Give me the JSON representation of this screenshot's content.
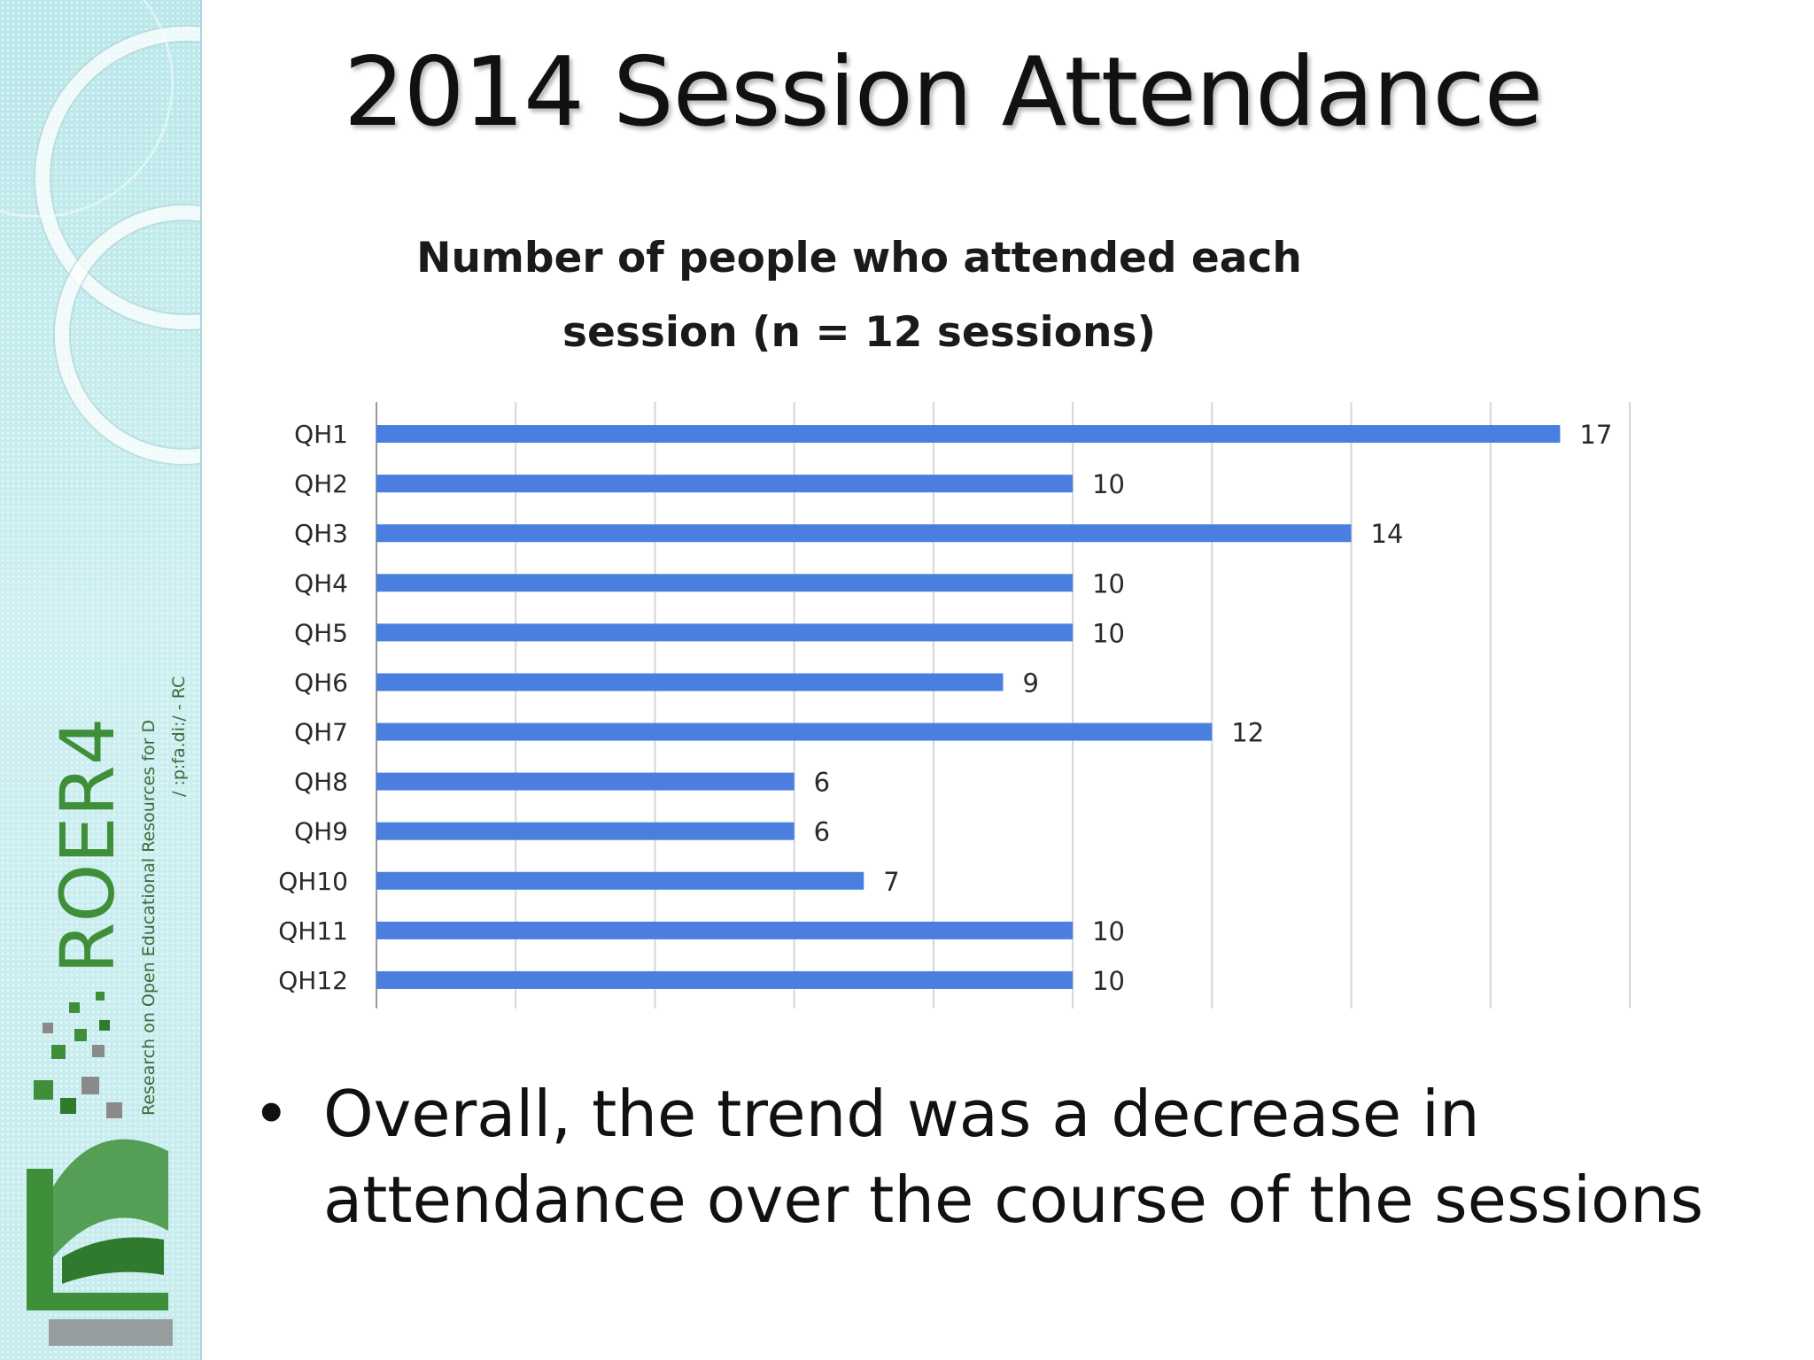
{
  "slide": {
    "title": "2014 Session Attendance",
    "bullet_symbol": "•",
    "bullet": "Overall, the trend was a decrease in attendance over the course of the sessions"
  },
  "logo": {
    "wordmark": "ROER4",
    "tagline": "Research on Open Educational Resources for D",
    "url_fragment": "/ :p:fa.di:/ - RC"
  },
  "colors": {
    "bar": "#4a7fe0",
    "sidebar": "#c9ecee",
    "logo_green": "#3f8f3a",
    "logo_gray": "#8a8a8a"
  },
  "chart_data": {
    "type": "bar",
    "orientation": "horizontal",
    "title": "Number of people who attended each session (n = 12 sessions)",
    "categories": [
      "QH1",
      "QH2",
      "QH3",
      "QH4",
      "QH5",
      "QH6",
      "QH7",
      "QH8",
      "QH9",
      "QH10",
      "QH11",
      "QH12"
    ],
    "values": [
      17,
      10,
      14,
      10,
      10,
      9,
      12,
      6,
      6,
      7,
      10,
      10
    ],
    "xlim": [
      0,
      18
    ],
    "grid": true,
    "data_labels": true
  }
}
